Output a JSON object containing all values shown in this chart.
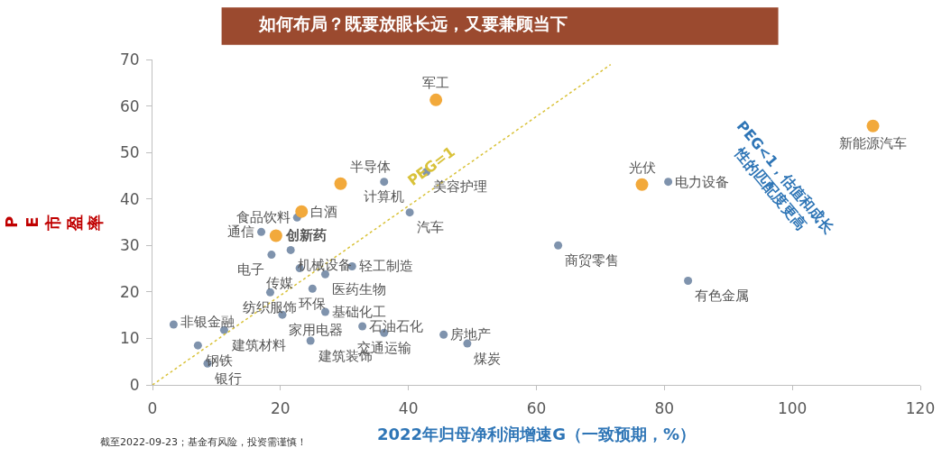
{
  "chart_data": {
    "type": "scatter",
    "title": "如何布局？既要放眼长远，又要兼顾当下",
    "xlabel": "2022年归母净利润增速G（一致预期，%）",
    "ylabel": "PE市盈率",
    "xlim": [
      0,
      120
    ],
    "xticks": [
      0,
      20,
      40,
      60,
      80,
      100,
      120
    ],
    "ylim": [
      0,
      70
    ],
    "yticks": [
      0,
      10,
      20,
      30,
      40,
      50,
      60,
      70
    ],
    "marker": "circle",
    "series": [
      {
        "color": "#7f93ad",
        "x": [
          3.3,
          7.1,
          8.6,
          11.2,
          18.4,
          20.3,
          18.6,
          17.0,
          22.6,
          21.6,
          23.0,
          27.0,
          31.2,
          25.0,
          27.0,
          24.7,
          32.8,
          36.2,
          45.5,
          49.2,
          36.2,
          42.8,
          40.2,
          63.4,
          83.7,
          80.6
        ],
        "values": [
          13.0,
          8.5,
          4.6,
          11.8,
          19.9,
          15.1,
          28.0,
          32.9,
          36.0,
          29.0,
          25.1,
          23.8,
          25.5,
          20.7,
          15.7,
          9.5,
          12.6,
          11.2,
          10.8,
          8.9,
          43.7,
          45.8,
          37.1,
          30.0,
          22.4,
          43.7
        ],
        "value_labels": [
          "非银金融",
          "钢铁",
          "银行",
          "建筑材料",
          "纺织服饰",
          "家用电器",
          "电子",
          "通信",
          "食品饮料",
          "机械设备",
          "传媒",
          "医药生物",
          "轻工制造",
          "环保",
          "基础化工",
          "建筑装饰",
          "石油石化",
          "交通运输",
          "房地产",
          "煤炭",
          "计算机",
          "美容护理",
          "汽车",
          "商贸零售",
          "有色金属",
          "电力设备"
        ]
      },
      {
        "color": "#f2a93b",
        "x": [
          44.3,
          29.4,
          23.3,
          19.3,
          76.5,
          112.6
        ],
        "values": [
          61.3,
          43.3,
          37.3,
          32.1,
          43.1,
          55.7
        ],
        "value_labels": [
          "军工",
          "半导体",
          "白酒",
          "创新药",
          "光伏",
          "新能源汽车"
        ]
      },
      {
        "type": "line",
        "name": "PEG=1",
        "color": "#d9c23a",
        "line_style": "dotted",
        "marker": "none",
        "x": [
          0,
          71.6
        ],
        "values": [
          0,
          68.9
        ]
      }
    ],
    "annotations": [
      "截至2022-09-23；基金有风险，投资需谨慎！",
      "PEG<1，估值和成长\n性的匹配度更高"
    ]
  }
}
